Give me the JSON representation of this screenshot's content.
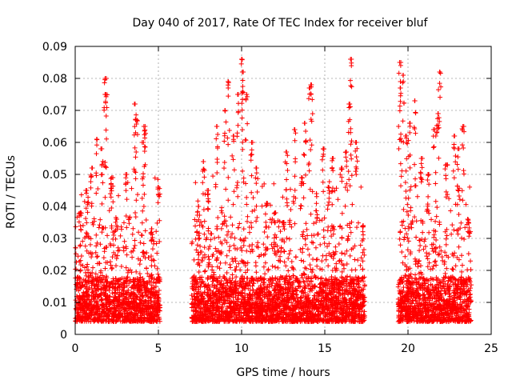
{
  "chart_data": {
    "type": "scatter",
    "title": "Day 040 of 2017, Rate Of TEC Index for receiver bluf",
    "xlabel": "GPS time / hours",
    "ylabel": "ROTI / TECUs",
    "xlim": [
      0,
      25
    ],
    "ylim": [
      0,
      0.09
    ],
    "x_ticks": [
      0,
      5,
      10,
      15,
      20,
      25
    ],
    "y_ticks": [
      0,
      0.01,
      0.02,
      0.03,
      0.04,
      0.05,
      0.06,
      0.07,
      0.08,
      0.09
    ],
    "x_tick_labels": [
      "0",
      "5",
      "10",
      "15",
      "20",
      "25"
    ],
    "y_tick_labels": [
      "0",
      "0.01",
      "0.02",
      "0.03",
      "0.04",
      "0.05",
      "0.06",
      "0.07",
      "0.08",
      "0.09"
    ],
    "grid": true,
    "marker": "+",
    "color": "#ff0000",
    "coverage_segments": [
      {
        "start": 0.0,
        "end": 5.1
      },
      {
        "start": 7.0,
        "end": 17.4
      },
      {
        "start": 19.4,
        "end": 23.8
      }
    ],
    "series": [
      {
        "name": "ROTI",
        "x": [
          0.3,
          0.7,
          1.0,
          1.3,
          1.6,
          1.8,
          1.85,
          2.2,
          2.5,
          3.1,
          3.6,
          3.7,
          4.1,
          4.2,
          4.6,
          5.0,
          7.4,
          7.7,
          8.0,
          8.5,
          9.0,
          9.2,
          9.5,
          9.8,
          10.0,
          10.1,
          10.3,
          10.6,
          10.9,
          11.5,
          12.0,
          12.5,
          12.7,
          13.2,
          13.6,
          13.8,
          14.1,
          14.2,
          14.5,
          14.9,
          15.2,
          15.5,
          16.0,
          16.3,
          16.5,
          16.6,
          16.9,
          17.3,
          19.5,
          19.55,
          19.7,
          19.9,
          20.1,
          20.4,
          20.8,
          21.2,
          21.6,
          21.8,
          21.9,
          22.3,
          22.8,
          23.0,
          23.3,
          23.6
        ],
        "y": [
          0.038,
          0.045,
          0.052,
          0.061,
          0.058,
          0.08,
          0.075,
          0.049,
          0.036,
          0.05,
          0.072,
          0.067,
          0.06,
          0.065,
          0.033,
          0.046,
          0.04,
          0.054,
          0.045,
          0.065,
          0.07,
          0.079,
          0.062,
          0.075,
          0.086,
          0.082,
          0.075,
          0.06,
          0.052,
          0.041,
          0.038,
          0.035,
          0.057,
          0.064,
          0.049,
          0.066,
          0.077,
          0.078,
          0.044,
          0.058,
          0.046,
          0.055,
          0.052,
          0.057,
          0.072,
          0.086,
          0.06,
          0.034,
          0.085,
          0.077,
          0.081,
          0.062,
          0.066,
          0.073,
          0.055,
          0.05,
          0.064,
          0.069,
          0.082,
          0.053,
          0.062,
          0.058,
          0.065,
          0.036
        ]
      }
    ]
  }
}
